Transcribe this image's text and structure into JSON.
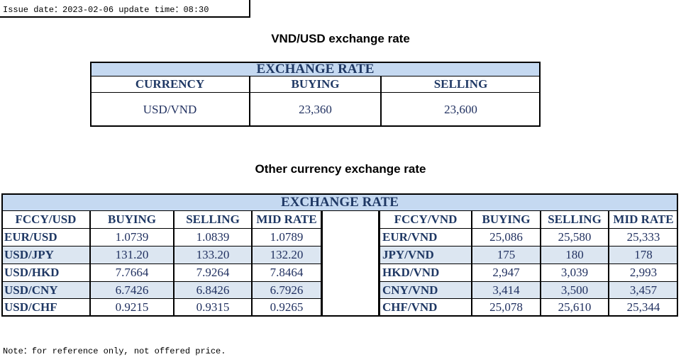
{
  "header": {
    "issue_date": "Issue date：2023-02-06 update time：08:30"
  },
  "vnd_usd": {
    "title": "VND/USD exchange rate",
    "table": {
      "caption": "EXCHANGE RATE",
      "columns": [
        "CURRENCY",
        "BUYING",
        "SELLING"
      ],
      "rows": [
        [
          "USD/VND",
          "23,360",
          "23,600"
        ]
      ]
    }
  },
  "other": {
    "title": "Other currency exchange rate",
    "table": {
      "caption": "EXCHANGE RATE",
      "left_columns": [
        "FCCY/USD",
        "BUYING",
        "SELLING",
        "MID RATE"
      ],
      "right_columns": [
        "FCCY/VND",
        "BUYING",
        "SELLING",
        "MID RATE"
      ],
      "left_rows": [
        [
          "EUR/USD",
          "1.0739",
          "1.0839",
          "1.0789"
        ],
        [
          "USD/JPY",
          "131.20",
          "133.20",
          "132.20"
        ],
        [
          "USD/HKD",
          "7.7664",
          "7.9264",
          "7.8464"
        ],
        [
          "USD/CNY",
          "6.7426",
          "6.8426",
          "6.7926"
        ],
        [
          "USD/CHF",
          "0.9215",
          "0.9315",
          "0.9265"
        ]
      ],
      "right_rows": [
        [
          "EUR/VND",
          "25,086",
          "25,580",
          "25,333"
        ],
        [
          "JPY/VND",
          "175",
          "180",
          "178"
        ],
        [
          "HKD/VND",
          "2,947",
          "3,039",
          "2,993"
        ],
        [
          "CNY/VND",
          "3,414",
          "3,500",
          "3,457"
        ],
        [
          "CHF/VND",
          "25,078",
          "25,610",
          "25,344"
        ]
      ]
    }
  },
  "note": "Note：for reference only, not offered price."
}
